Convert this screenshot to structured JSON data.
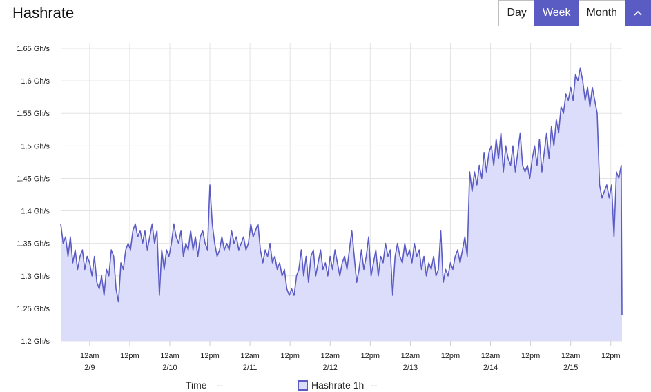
{
  "header": {
    "title": "Hashrate"
  },
  "range": {
    "day": "Day",
    "week": "Week",
    "month": "Month",
    "active": "Week"
  },
  "legend": {
    "time_label": "Time",
    "time_value": "--",
    "series_value": "--"
  },
  "colors": {
    "accent": "#5b5bc4",
    "fill": "#dcdcfb",
    "grid": "#e3e3e3"
  },
  "chart_data": {
    "type": "area",
    "ylabel_unit": "Gh/s",
    "ylim": [
      1.2,
      1.65
    ],
    "yticks": [
      "1.2 Gh/s",
      "1.25 Gh/s",
      "1.3 Gh/s",
      "1.35 Gh/s",
      "1.4 Gh/s",
      "1.45 Gh/s",
      "1.5 Gh/s",
      "1.55 Gh/s",
      "1.6 Gh/s",
      "1.65 Gh/s"
    ],
    "xlim": [
      -0.36,
      6.64
    ],
    "xticks": [
      {
        "x": 0.0,
        "time": "12am",
        "date": "2/9"
      },
      {
        "x": 0.5,
        "time": "12pm",
        "date": ""
      },
      {
        "x": 1.0,
        "time": "12am",
        "date": "2/10"
      },
      {
        "x": 1.5,
        "time": "12pm",
        "date": ""
      },
      {
        "x": 2.0,
        "time": "12am",
        "date": "2/11"
      },
      {
        "x": 2.5,
        "time": "12pm",
        "date": ""
      },
      {
        "x": 3.0,
        "time": "12am",
        "date": "2/12"
      },
      {
        "x": 3.5,
        "time": "12pm",
        "date": ""
      },
      {
        "x": 4.0,
        "time": "12am",
        "date": "2/13"
      },
      {
        "x": 4.5,
        "time": "12pm",
        "date": ""
      },
      {
        "x": 5.0,
        "time": "12am",
        "date": "2/14"
      },
      {
        "x": 5.5,
        "time": "12pm",
        "date": ""
      },
      {
        "x": 6.0,
        "time": "12am",
        "date": "2/15"
      },
      {
        "x": 6.5,
        "time": "12pm",
        "date": ""
      }
    ],
    "grid": true,
    "legend_position": "bottom",
    "series": [
      {
        "name": "Hashrate 1h",
        "points": [
          [
            -0.36,
            1.38
          ],
          [
            -0.33,
            1.35
          ],
          [
            -0.3,
            1.36
          ],
          [
            -0.27,
            1.33
          ],
          [
            -0.24,
            1.36
          ],
          [
            -0.21,
            1.32
          ],
          [
            -0.18,
            1.34
          ],
          [
            -0.15,
            1.31
          ],
          [
            -0.12,
            1.33
          ],
          [
            -0.09,
            1.34
          ],
          [
            -0.06,
            1.31
          ],
          [
            -0.03,
            1.33
          ],
          [
            0.0,
            1.32
          ],
          [
            0.03,
            1.3
          ],
          [
            0.06,
            1.33
          ],
          [
            0.09,
            1.29
          ],
          [
            0.12,
            1.28
          ],
          [
            0.15,
            1.3
          ],
          [
            0.18,
            1.27
          ],
          [
            0.21,
            1.31
          ],
          [
            0.24,
            1.3
          ],
          [
            0.27,
            1.34
          ],
          [
            0.3,
            1.33
          ],
          [
            0.33,
            1.28
          ],
          [
            0.36,
            1.26
          ],
          [
            0.39,
            1.32
          ],
          [
            0.42,
            1.31
          ],
          [
            0.45,
            1.34
          ],
          [
            0.48,
            1.35
          ],
          [
            0.51,
            1.34
          ],
          [
            0.54,
            1.37
          ],
          [
            0.57,
            1.38
          ],
          [
            0.6,
            1.36
          ],
          [
            0.63,
            1.37
          ],
          [
            0.66,
            1.35
          ],
          [
            0.69,
            1.37
          ],
          [
            0.72,
            1.34
          ],
          [
            0.75,
            1.36
          ],
          [
            0.78,
            1.38
          ],
          [
            0.81,
            1.35
          ],
          [
            0.84,
            1.37
          ],
          [
            0.87,
            1.27
          ],
          [
            0.9,
            1.34
          ],
          [
            0.93,
            1.31
          ],
          [
            0.96,
            1.34
          ],
          [
            0.99,
            1.33
          ],
          [
            1.02,
            1.35
          ],
          [
            1.05,
            1.38
          ],
          [
            1.08,
            1.36
          ],
          [
            1.11,
            1.35
          ],
          [
            1.14,
            1.37
          ],
          [
            1.17,
            1.33
          ],
          [
            1.2,
            1.35
          ],
          [
            1.23,
            1.34
          ],
          [
            1.26,
            1.37
          ],
          [
            1.29,
            1.34
          ],
          [
            1.32,
            1.36
          ],
          [
            1.35,
            1.33
          ],
          [
            1.38,
            1.36
          ],
          [
            1.41,
            1.37
          ],
          [
            1.44,
            1.35
          ],
          [
            1.47,
            1.34
          ],
          [
            1.5,
            1.44
          ],
          [
            1.53,
            1.38
          ],
          [
            1.56,
            1.35
          ],
          [
            1.59,
            1.33
          ],
          [
            1.62,
            1.34
          ],
          [
            1.65,
            1.36
          ],
          [
            1.68,
            1.34
          ],
          [
            1.71,
            1.35
          ],
          [
            1.74,
            1.34
          ],
          [
            1.77,
            1.37
          ],
          [
            1.8,
            1.35
          ],
          [
            1.83,
            1.36
          ],
          [
            1.86,
            1.34
          ],
          [
            1.89,
            1.35
          ],
          [
            1.92,
            1.36
          ],
          [
            1.95,
            1.34
          ],
          [
            1.98,
            1.35
          ],
          [
            2.01,
            1.38
          ],
          [
            2.04,
            1.36
          ],
          [
            2.07,
            1.37
          ],
          [
            2.1,
            1.38
          ],
          [
            2.13,
            1.34
          ],
          [
            2.16,
            1.32
          ],
          [
            2.19,
            1.34
          ],
          [
            2.22,
            1.33
          ],
          [
            2.25,
            1.35
          ],
          [
            2.28,
            1.32
          ],
          [
            2.31,
            1.33
          ],
          [
            2.34,
            1.31
          ],
          [
            2.37,
            1.32
          ],
          [
            2.4,
            1.3
          ],
          [
            2.43,
            1.31
          ],
          [
            2.46,
            1.28
          ],
          [
            2.49,
            1.27
          ],
          [
            2.52,
            1.28
          ],
          [
            2.55,
            1.27
          ],
          [
            2.58,
            1.3
          ],
          [
            2.61,
            1.31
          ],
          [
            2.64,
            1.34
          ],
          [
            2.67,
            1.3
          ],
          [
            2.7,
            1.33
          ],
          [
            2.73,
            1.29
          ],
          [
            2.76,
            1.33
          ],
          [
            2.79,
            1.34
          ],
          [
            2.82,
            1.3
          ],
          [
            2.85,
            1.32
          ],
          [
            2.88,
            1.34
          ],
          [
            2.91,
            1.31
          ],
          [
            2.94,
            1.32
          ],
          [
            2.97,
            1.3
          ],
          [
            3.0,
            1.33
          ],
          [
            3.03,
            1.31
          ],
          [
            3.06,
            1.34
          ],
          [
            3.09,
            1.32
          ],
          [
            3.12,
            1.3
          ],
          [
            3.15,
            1.32
          ],
          [
            3.18,
            1.33
          ],
          [
            3.21,
            1.31
          ],
          [
            3.24,
            1.34
          ],
          [
            3.27,
            1.37
          ],
          [
            3.3,
            1.33
          ],
          [
            3.33,
            1.29
          ],
          [
            3.36,
            1.31
          ],
          [
            3.39,
            1.34
          ],
          [
            3.42,
            1.31
          ],
          [
            3.45,
            1.33
          ],
          [
            3.48,
            1.36
          ],
          [
            3.51,
            1.3
          ],
          [
            3.54,
            1.32
          ],
          [
            3.57,
            1.34
          ],
          [
            3.6,
            1.3
          ],
          [
            3.63,
            1.33
          ],
          [
            3.66,
            1.32
          ],
          [
            3.69,
            1.35
          ],
          [
            3.72,
            1.33
          ],
          [
            3.75,
            1.34
          ],
          [
            3.78,
            1.27
          ],
          [
            3.81,
            1.33
          ],
          [
            3.84,
            1.35
          ],
          [
            3.87,
            1.33
          ],
          [
            3.9,
            1.32
          ],
          [
            3.93,
            1.35
          ],
          [
            3.96,
            1.33
          ],
          [
            3.99,
            1.34
          ],
          [
            4.02,
            1.32
          ],
          [
            4.05,
            1.35
          ],
          [
            4.08,
            1.33
          ],
          [
            4.11,
            1.34
          ],
          [
            4.14,
            1.31
          ],
          [
            4.17,
            1.33
          ],
          [
            4.2,
            1.3
          ],
          [
            4.23,
            1.32
          ],
          [
            4.26,
            1.31
          ],
          [
            4.29,
            1.33
          ],
          [
            4.32,
            1.3
          ],
          [
            4.35,
            1.31
          ],
          [
            4.38,
            1.37
          ],
          [
            4.41,
            1.29
          ],
          [
            4.44,
            1.31
          ],
          [
            4.47,
            1.3
          ],
          [
            4.5,
            1.32
          ],
          [
            4.53,
            1.31
          ],
          [
            4.56,
            1.33
          ],
          [
            4.59,
            1.34
          ],
          [
            4.62,
            1.32
          ],
          [
            4.65,
            1.34
          ],
          [
            4.68,
            1.36
          ],
          [
            4.71,
            1.33
          ],
          [
            4.74,
            1.46
          ],
          [
            4.77,
            1.43
          ],
          [
            4.8,
            1.46
          ],
          [
            4.83,
            1.44
          ],
          [
            4.86,
            1.47
          ],
          [
            4.89,
            1.45
          ],
          [
            4.92,
            1.49
          ],
          [
            4.95,
            1.46
          ],
          [
            4.98,
            1.49
          ],
          [
            5.01,
            1.5
          ],
          [
            5.04,
            1.47
          ],
          [
            5.07,
            1.51
          ],
          [
            5.1,
            1.48
          ],
          [
            5.13,
            1.52
          ],
          [
            5.16,
            1.46
          ],
          [
            5.19,
            1.5
          ],
          [
            5.22,
            1.48
          ],
          [
            5.25,
            1.47
          ],
          [
            5.28,
            1.5
          ],
          [
            5.31,
            1.46
          ],
          [
            5.34,
            1.49
          ],
          [
            5.37,
            1.52
          ],
          [
            5.4,
            1.47
          ],
          [
            5.43,
            1.46
          ],
          [
            5.46,
            1.47
          ],
          [
            5.49,
            1.45
          ],
          [
            5.52,
            1.48
          ],
          [
            5.55,
            1.5
          ],
          [
            5.58,
            1.47
          ],
          [
            5.61,
            1.51
          ],
          [
            5.64,
            1.46
          ],
          [
            5.67,
            1.49
          ],
          [
            5.7,
            1.52
          ],
          [
            5.73,
            1.48
          ],
          [
            5.76,
            1.53
          ],
          [
            5.79,
            1.5
          ],
          [
            5.82,
            1.54
          ],
          [
            5.85,
            1.52
          ],
          [
            5.88,
            1.56
          ],
          [
            5.91,
            1.55
          ],
          [
            5.94,
            1.58
          ],
          [
            5.97,
            1.57
          ],
          [
            6.0,
            1.59
          ],
          [
            6.03,
            1.57
          ],
          [
            6.06,
            1.61
          ],
          [
            6.09,
            1.6
          ],
          [
            6.12,
            1.62
          ],
          [
            6.15,
            1.6
          ],
          [
            6.18,
            1.57
          ],
          [
            6.21,
            1.59
          ],
          [
            6.24,
            1.56
          ],
          [
            6.27,
            1.59
          ],
          [
            6.3,
            1.57
          ],
          [
            6.33,
            1.55
          ],
          [
            6.36,
            1.44
          ],
          [
            6.39,
            1.42
          ],
          [
            6.42,
            1.43
          ],
          [
            6.45,
            1.44
          ],
          [
            6.48,
            1.42
          ],
          [
            6.51,
            1.44
          ],
          [
            6.54,
            1.36
          ],
          [
            6.57,
            1.46
          ],
          [
            6.6,
            1.45
          ],
          [
            6.63,
            1.47
          ],
          [
            6.64,
            1.24
          ]
        ]
      }
    ]
  }
}
